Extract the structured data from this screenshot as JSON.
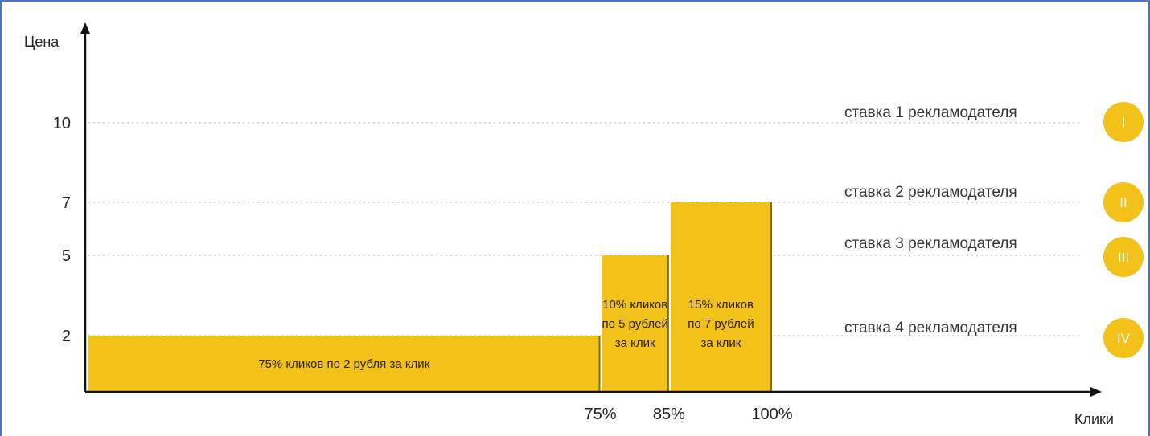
{
  "chart_data": {
    "type": "bar",
    "xlabel": "Клики",
    "ylabel": "Цена",
    "ylim": [
      0,
      10
    ],
    "yticks": [
      2,
      5,
      7,
      10
    ],
    "xticks": [
      "75%",
      "85%",
      "100%"
    ],
    "bars": [
      {
        "from": 0,
        "to": 75,
        "value": 2,
        "label": [
          "75% кликов по 2 рубля за клик"
        ]
      },
      {
        "from": 75,
        "to": 85,
        "value": 5,
        "label": [
          "10% кликов",
          "по 5 рублей",
          "за клик"
        ]
      },
      {
        "from": 85,
        "to": 100,
        "value": 7,
        "label": [
          "15% кликов",
          "по 7 рублей",
          "за клик"
        ]
      }
    ],
    "bids": [
      {
        "value": 10,
        "label": "ставка 1 рекламодателя",
        "numeral": "I"
      },
      {
        "value": 7,
        "label": "ставка 2 рекламодателя",
        "numeral": "II"
      },
      {
        "value": 5,
        "label": "ставка 3 рекламодателя",
        "numeral": "III"
      },
      {
        "value": 2,
        "label": "ставка 4 рекламодателя",
        "numeral": "IV"
      }
    ],
    "colors": {
      "bar": "#F2C21B",
      "bar_edge": "#8a6d00",
      "badge": "#F2C21B",
      "grid": "#c8c8c8",
      "axis": "#111111"
    }
  }
}
